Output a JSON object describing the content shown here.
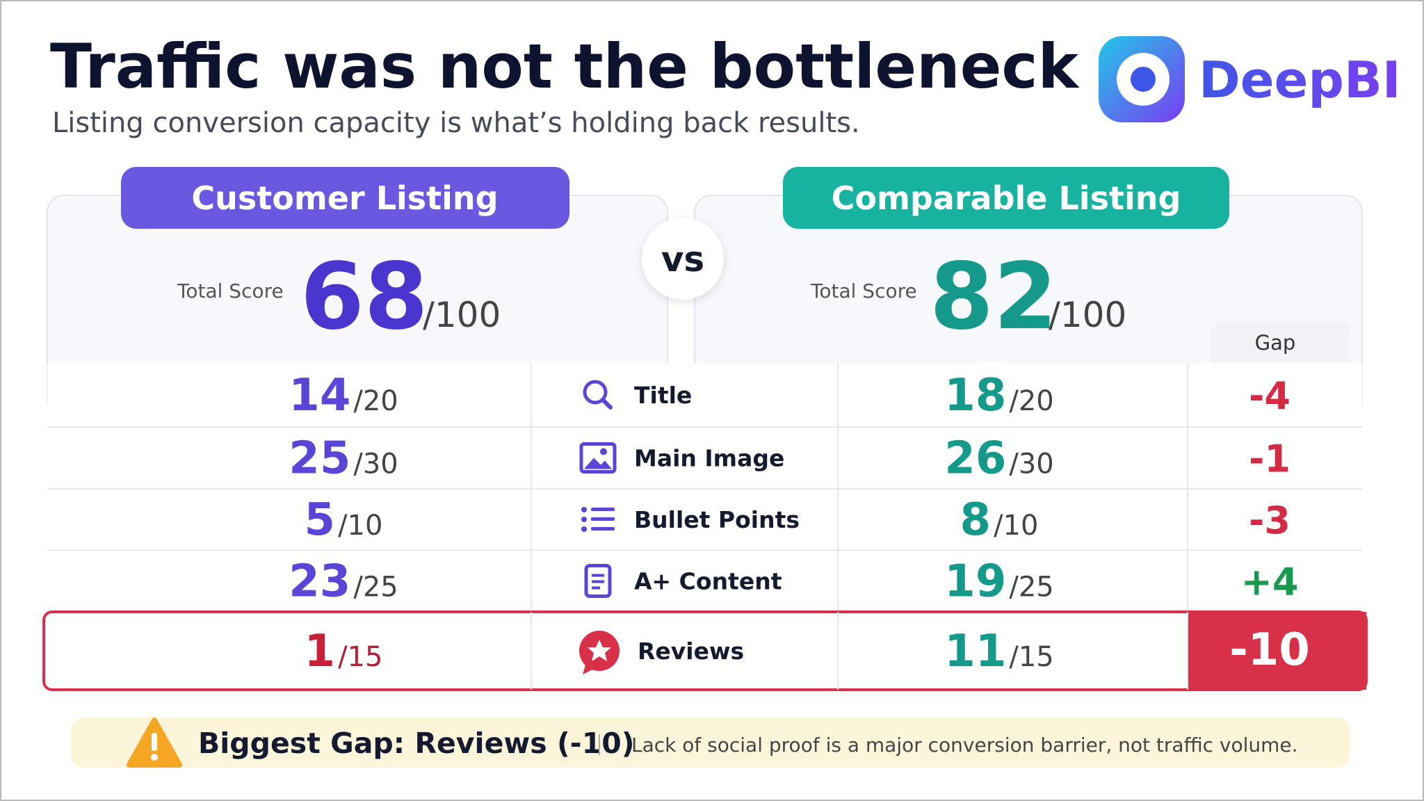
{
  "header": {
    "title": "Traffic was not the bottleneck",
    "subtitle": "Listing conversion capacity is what’s holding back results.",
    "brand": "DeepBI"
  },
  "customer": {
    "label": "Customer Listing",
    "total_label": "Total Score",
    "total": "68",
    "total_max": "/100"
  },
  "versus": "vs",
  "comparable": {
    "label": "Comparable Listing",
    "total_label": "Total Score",
    "total": "82",
    "total_max": "/100"
  },
  "gap_header": "Gap",
  "rows": [
    {
      "customer_score": "14",
      "customer_max": "/20",
      "label": "Title",
      "comparable_score": "18",
      "comparable_max": "/20",
      "gap": "-4"
    },
    {
      "customer_score": "25",
      "customer_max": "/30",
      "label": "Main Image",
      "comparable_score": "26",
      "comparable_max": "/30",
      "gap": "-1"
    },
    {
      "customer_score": "5",
      "customer_max": "/10",
      "label": "Bullet Points",
      "comparable_score": "8",
      "comparable_max": "/10",
      "gap": "-3"
    },
    {
      "customer_score": "23",
      "customer_max": "/25",
      "label": "A+ Content",
      "comparable_score": "19",
      "comparable_max": "/25",
      "gap": "+4"
    },
    {
      "customer_score": "1",
      "customer_max": "/15",
      "label": "Reviews",
      "comparable_score": "11",
      "comparable_max": "/15",
      "gap": "-10",
      "highlight": true
    }
  ],
  "footer": {
    "headline": "Biggest Gap: Reviews (-10)",
    "note": "Lack of social proof is a major conversion barrier, not traffic volume."
  }
}
